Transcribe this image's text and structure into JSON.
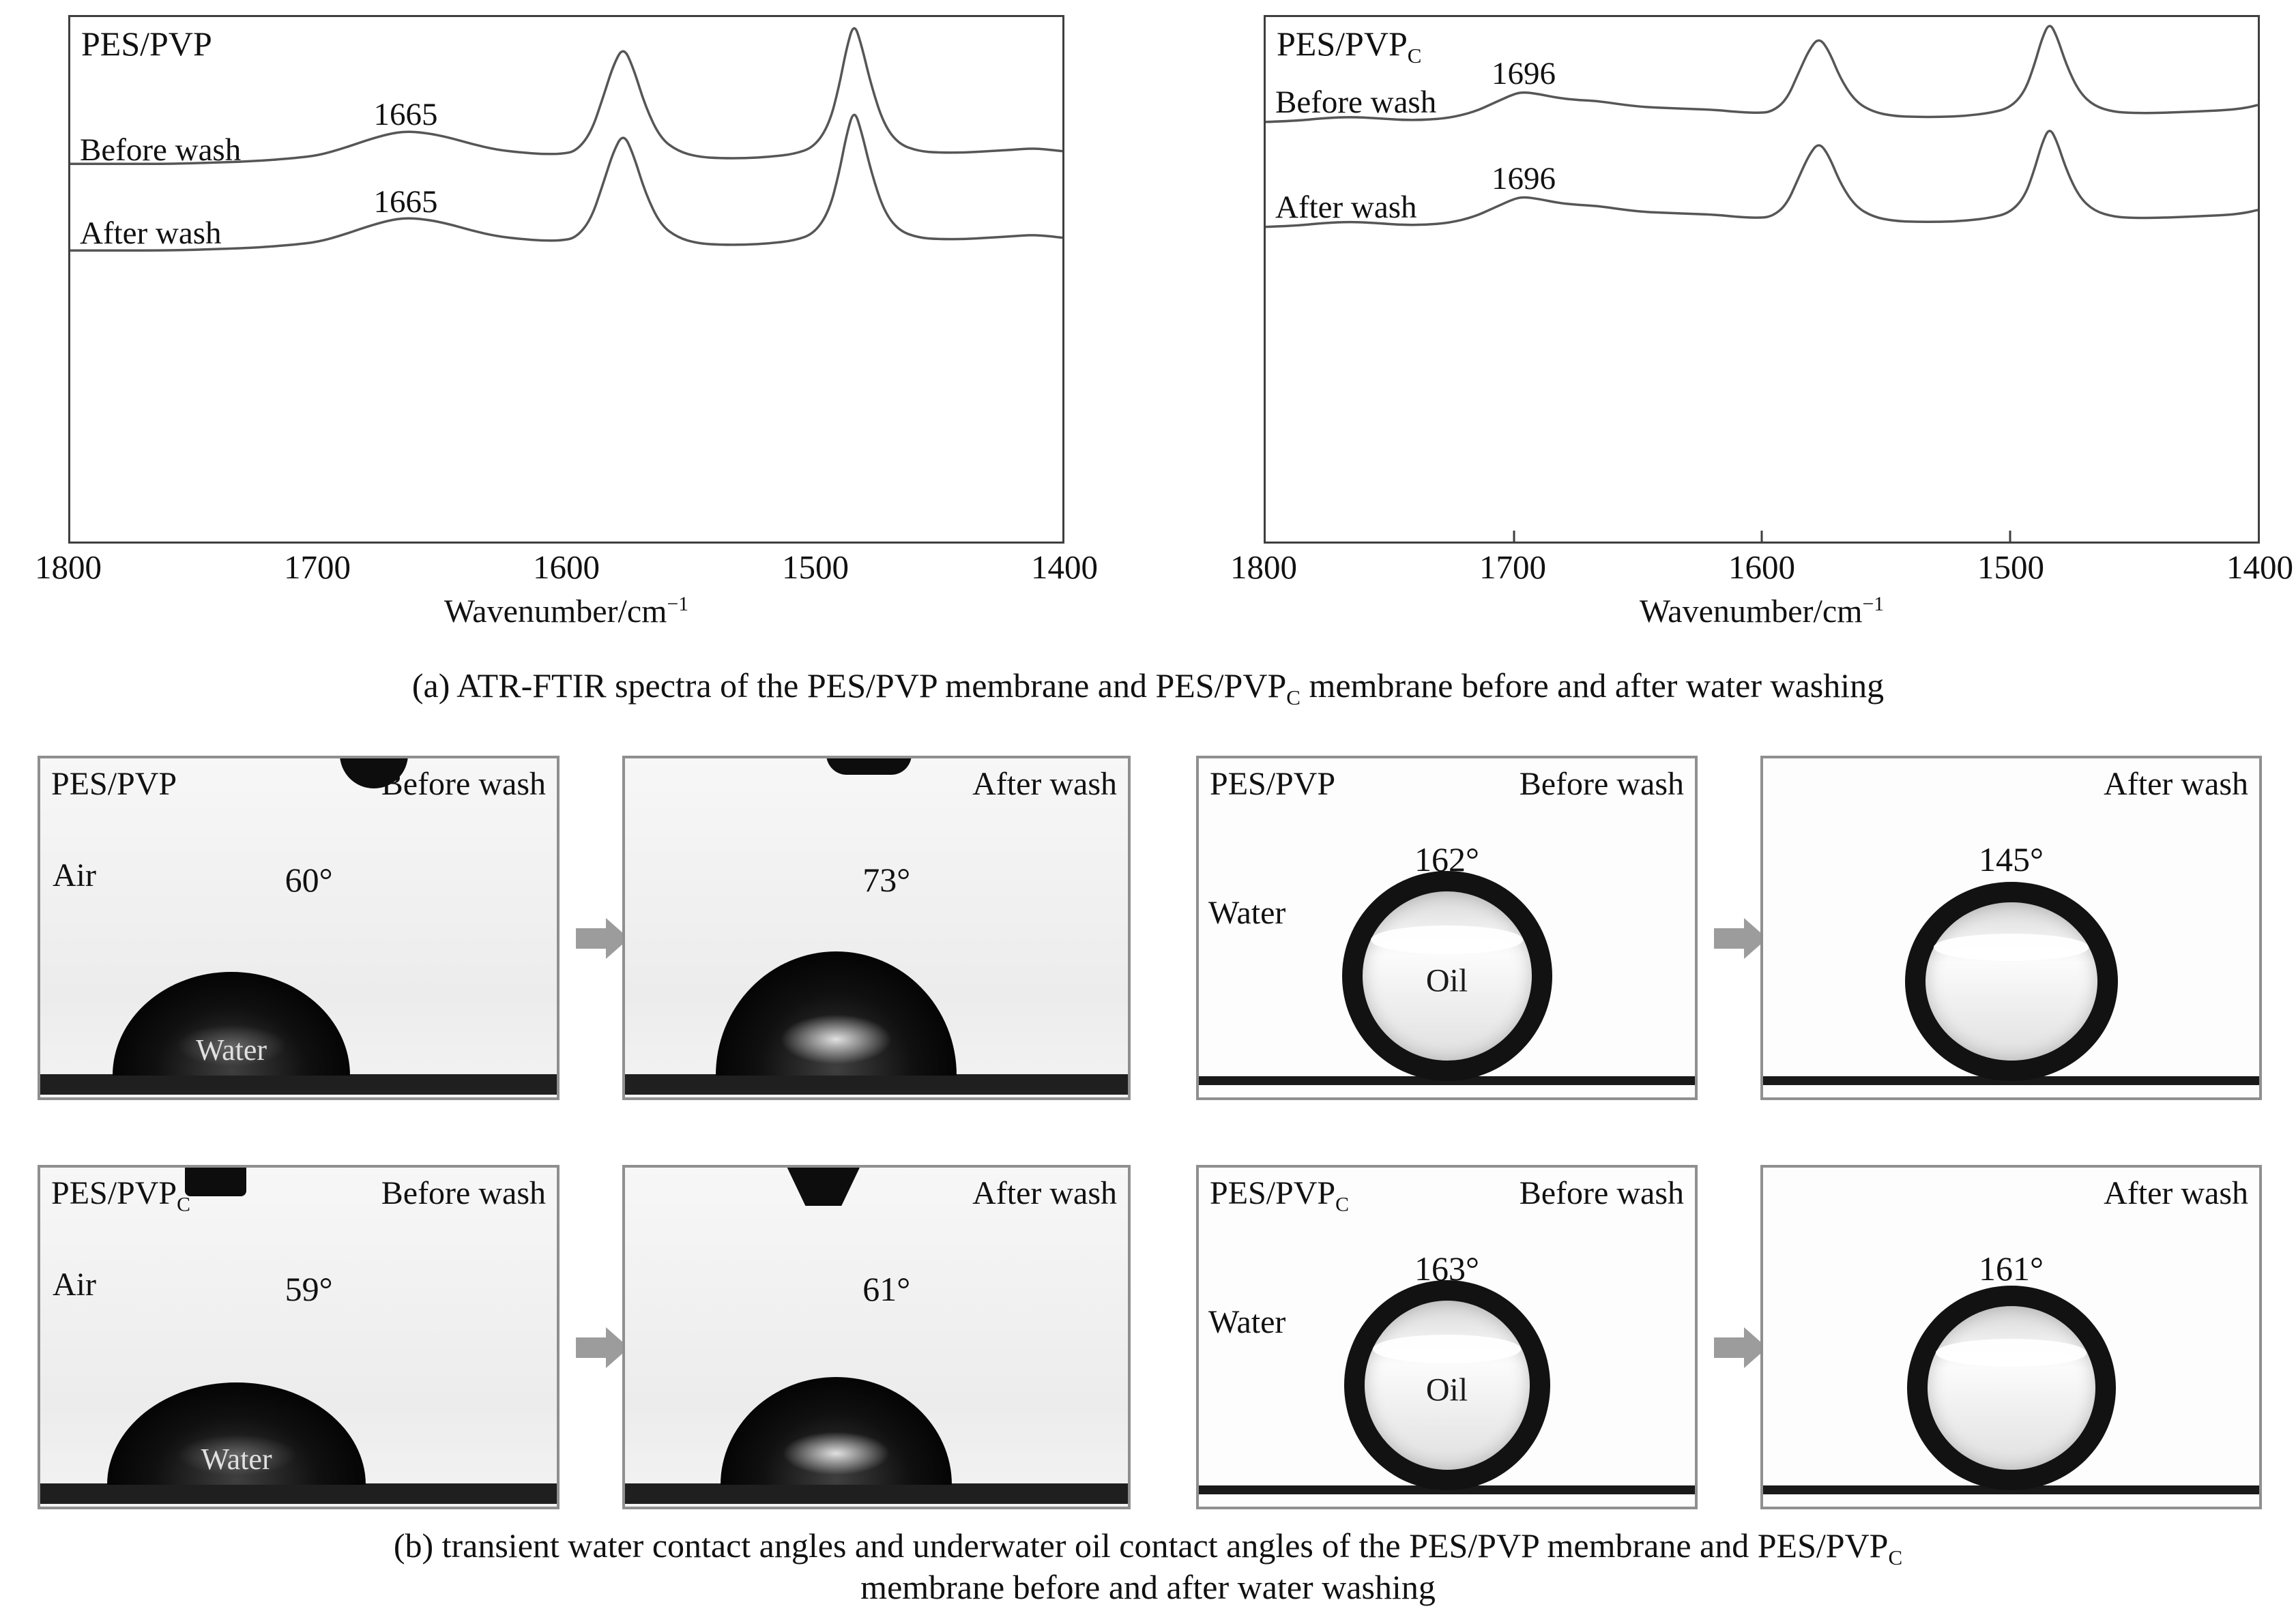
{
  "figure": {
    "caption_a": {
      "prefix": "(a) ATR-FTIR spectra of the PES/PVP membrane and PES/PVP",
      "sub": "C",
      "suffix": " membrane before and after water washing"
    },
    "caption_b_line1": {
      "prefix": "(b) transient water contact angles and underwater oil contact angles of the PES/PVP membrane and PES/PVP",
      "sub": "C"
    },
    "caption_b_line2": "membrane before and after water washing"
  },
  "spectra": {
    "left": {
      "title": "PES/PVP",
      "title_sub": "",
      "series_labels": [
        "Before wash",
        "After wash"
      ],
      "peak_labels": [
        "1665",
        "1665"
      ],
      "x_ticks": [
        "1800",
        "1700",
        "1600",
        "1500",
        "1400"
      ],
      "axis_label": "Wavenumber/cm",
      "axis_label_sup": "−1"
    },
    "right": {
      "title": "PES/PVP",
      "title_sub": "C",
      "series_labels": [
        "Before wash",
        "After wash"
      ],
      "peak_labels": [
        "1696",
        "1696"
      ],
      "x_ticks": [
        "1800",
        "1700",
        "1600",
        "1500",
        "1400"
      ],
      "axis_label": "Wavenumber/cm",
      "axis_label_sup": "−1"
    }
  },
  "chart_data": [
    {
      "type": "line",
      "title": "PES/PVP",
      "xlabel": "Wavenumber/cm⁻¹",
      "x_range": [
        1800,
        1400
      ],
      "x_ticks": [
        1800,
        1700,
        1600,
        1500,
        1400
      ],
      "annotation": {
        "label": "1665",
        "wavenumber": 1665
      },
      "legend_position": "in-plot-left",
      "grid": false,
      "series": [
        {
          "name": "Before wash"
        },
        {
          "name": "After wash"
        }
      ],
      "wavenumbers": [
        1800,
        1780,
        1760,
        1740,
        1725,
        1710,
        1700,
        1690,
        1680,
        1672,
        1665,
        1657,
        1648,
        1638,
        1628,
        1618,
        1610,
        1602,
        1596,
        1590,
        1585,
        1581,
        1577,
        1573,
        1568,
        1562,
        1555,
        1547,
        1538,
        1528,
        1518,
        1508,
        1500,
        1494,
        1490,
        1487,
        1484,
        1481,
        1477,
        1472,
        1466,
        1458,
        1450,
        1440,
        1430,
        1420,
        1412,
        1405,
        1400
      ],
      "relative_absorbance": [
        0,
        0,
        0,
        0.01,
        0.02,
        0.04,
        0.06,
        0.11,
        0.17,
        0.21,
        0.23,
        0.22,
        0.19,
        0.14,
        0.1,
        0.08,
        0.07,
        0.07,
        0.09,
        0.22,
        0.48,
        0.7,
        0.83,
        0.68,
        0.4,
        0.18,
        0.09,
        0.05,
        0.04,
        0.04,
        0.05,
        0.07,
        0.12,
        0.28,
        0.55,
        0.82,
        1.0,
        0.84,
        0.55,
        0.28,
        0.14,
        0.09,
        0.08,
        0.08,
        0.09,
        0.1,
        0.11,
        0.1,
        0.09
      ]
    },
    {
      "type": "line",
      "title": "PES/PVP_C",
      "xlabel": "Wavenumber/cm⁻¹",
      "x_range": [
        1800,
        1400
      ],
      "x_ticks": [
        1800,
        1700,
        1600,
        1500,
        1400
      ],
      "annotation": {
        "label": "1696",
        "wavenumber": 1696
      },
      "legend_position": "in-plot-left",
      "grid": false,
      "series": [
        {
          "name": "Before wash"
        },
        {
          "name": "After wash"
        }
      ],
      "wavenumbers": [
        1800,
        1788,
        1776,
        1766,
        1756,
        1746,
        1736,
        1726,
        1716,
        1708,
        1700,
        1696,
        1690,
        1682,
        1674,
        1666,
        1658,
        1648,
        1638,
        1628,
        1618,
        1610,
        1602,
        1596,
        1590,
        1585,
        1581,
        1577,
        1573,
        1568,
        1562,
        1555,
        1547,
        1538,
        1528,
        1518,
        1508,
        1500,
        1494,
        1490,
        1487,
        1484,
        1481,
        1477,
        1472,
        1466,
        1458,
        1450,
        1440,
        1430,
        1420,
        1412,
        1405,
        1400
      ],
      "relative_absorbance": [
        0.0,
        0.01,
        0.04,
        0.05,
        0.04,
        0.02,
        0.02,
        0.04,
        0.1,
        0.19,
        0.28,
        0.3,
        0.28,
        0.24,
        0.22,
        0.21,
        0.18,
        0.15,
        0.14,
        0.13,
        0.12,
        0.1,
        0.09,
        0.1,
        0.22,
        0.5,
        0.72,
        0.85,
        0.72,
        0.42,
        0.2,
        0.1,
        0.06,
        0.05,
        0.05,
        0.06,
        0.09,
        0.14,
        0.3,
        0.58,
        0.84,
        1.0,
        0.86,
        0.56,
        0.3,
        0.16,
        0.1,
        0.09,
        0.09,
        0.1,
        0.11,
        0.12,
        0.14,
        0.17
      ]
    }
  ],
  "panels": {
    "row1": {
      "p1": {
        "title": "PES/PVP",
        "title_sub": "",
        "wash": "Before wash",
        "medium": "Air",
        "angle": "60°",
        "drop": "Water"
      },
      "p2": {
        "wash": "After wash",
        "angle": "73°"
      },
      "p3": {
        "title": "PES/PVP",
        "title_sub": "",
        "wash": "Before wash",
        "medium": "Water",
        "angle": "162°",
        "drop": "Oil"
      },
      "p4": {
        "wash": "After wash",
        "angle": "145°"
      }
    },
    "row2": {
      "p1": {
        "title": "PES/PVP",
        "title_sub": "C",
        "wash": "Before wash",
        "medium": "Air",
        "angle": "59°",
        "drop": "Water"
      },
      "p2": {
        "wash": "After wash",
        "angle": "61°"
      },
      "p3": {
        "title": "PES/PVP",
        "title_sub": "C",
        "wash": "Before wash",
        "medium": "Water",
        "angle": "163°",
        "drop": "Oil"
      },
      "p4": {
        "wash": "After wash",
        "angle": "161°"
      }
    }
  }
}
